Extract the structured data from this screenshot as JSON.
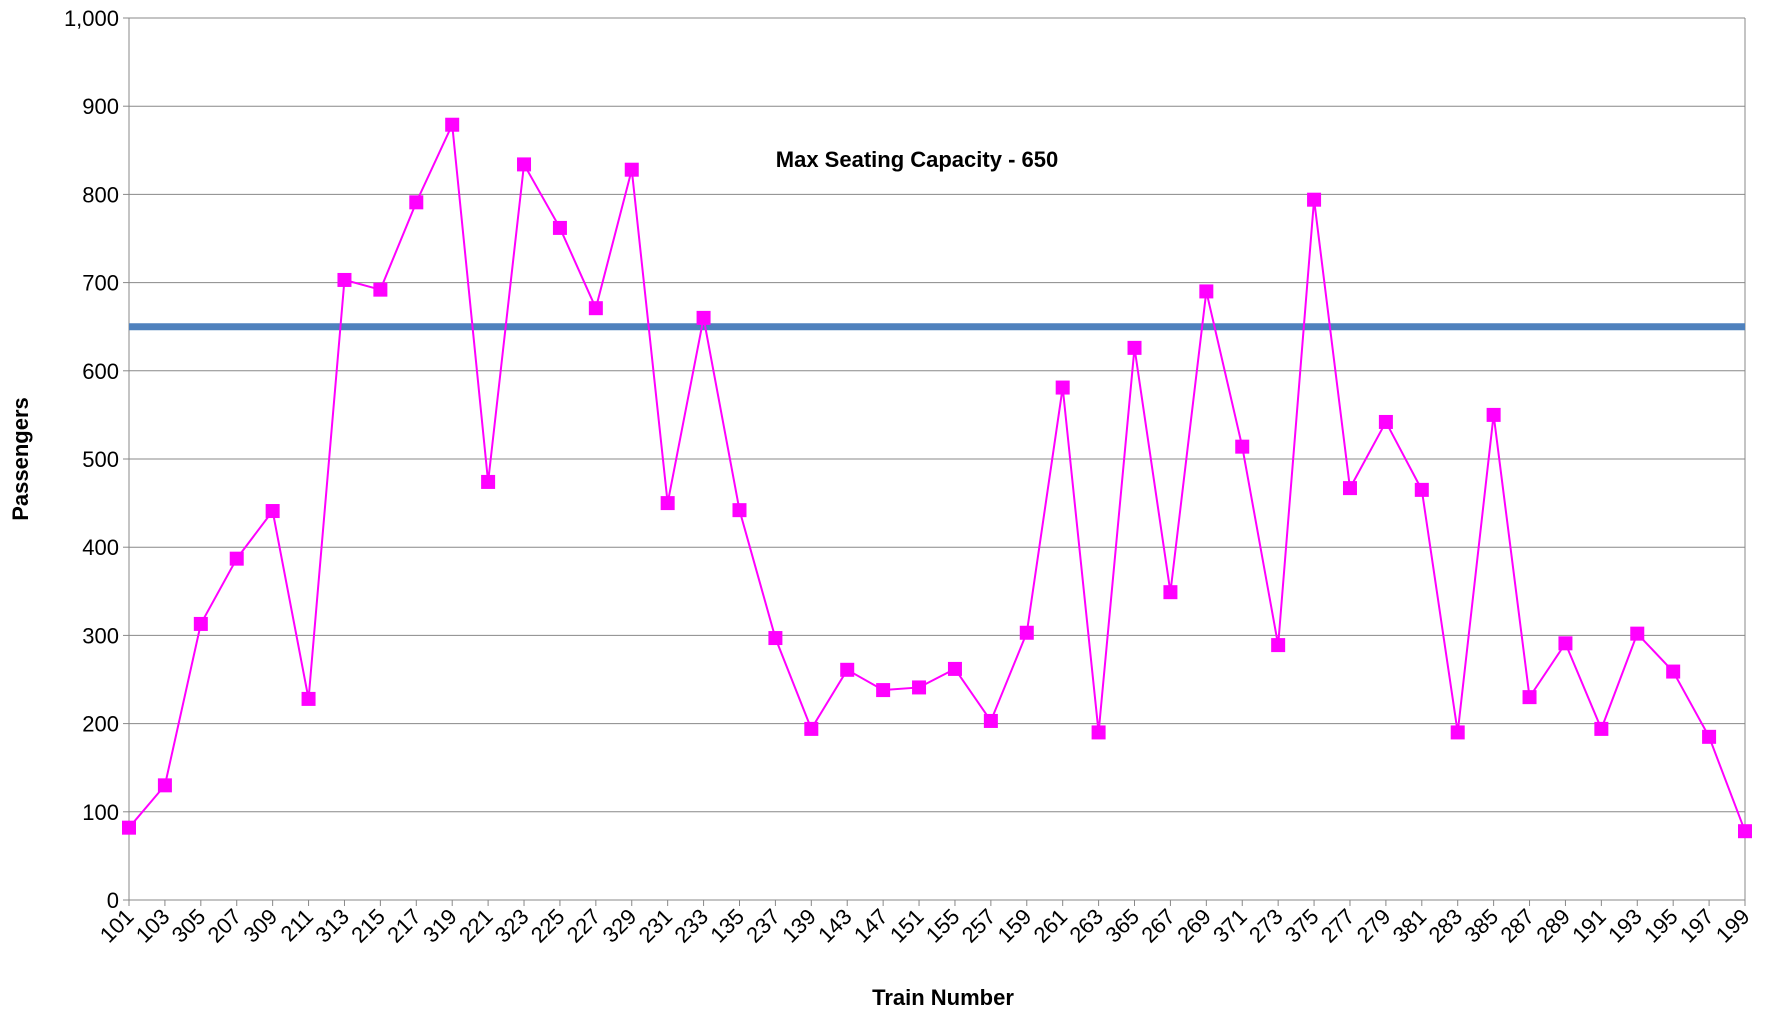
{
  "chart_data": {
    "type": "line",
    "x_label": "Train Number",
    "y_label": "Passengers",
    "annotation": "Max Seating Capacity - 650",
    "categories": [
      "101",
      "103",
      "305",
      "207",
      "309",
      "211",
      "313",
      "215",
      "217",
      "319",
      "221",
      "323",
      "225",
      "227",
      "329",
      "231",
      "233",
      "135",
      "237",
      "139",
      "143",
      "147",
      "151",
      "155",
      "257",
      "159",
      "261",
      "263",
      "365",
      "267",
      "269",
      "371",
      "273",
      "375",
      "277",
      "279",
      "381",
      "283",
      "385",
      "287",
      "289",
      "191",
      "193",
      "195",
      "197",
      "199"
    ],
    "series": [
      {
        "color": "#ff00ff",
        "values": [
          82,
          130,
          313,
          387,
          441,
          228,
          703,
          692,
          791,
          879,
          474,
          834,
          762,
          671,
          828,
          450,
          660,
          442,
          297,
          194,
          261,
          238,
          241,
          262,
          203,
          303,
          581,
          190,
          626,
          349,
          690,
          514,
          289,
          794,
          467,
          542,
          465,
          190,
          550,
          230,
          291,
          194,
          302,
          259,
          185,
          78
        ]
      }
    ],
    "reference_line": {
      "value": 650,
      "color": "#4f81bd"
    },
    "ylim": [
      0,
      1000
    ],
    "yticks": [
      0,
      100,
      200,
      300,
      400,
      500,
      600,
      700,
      800,
      900,
      {
        "value": 1000,
        "label": "1,000"
      }
    ],
    "grid": true
  }
}
